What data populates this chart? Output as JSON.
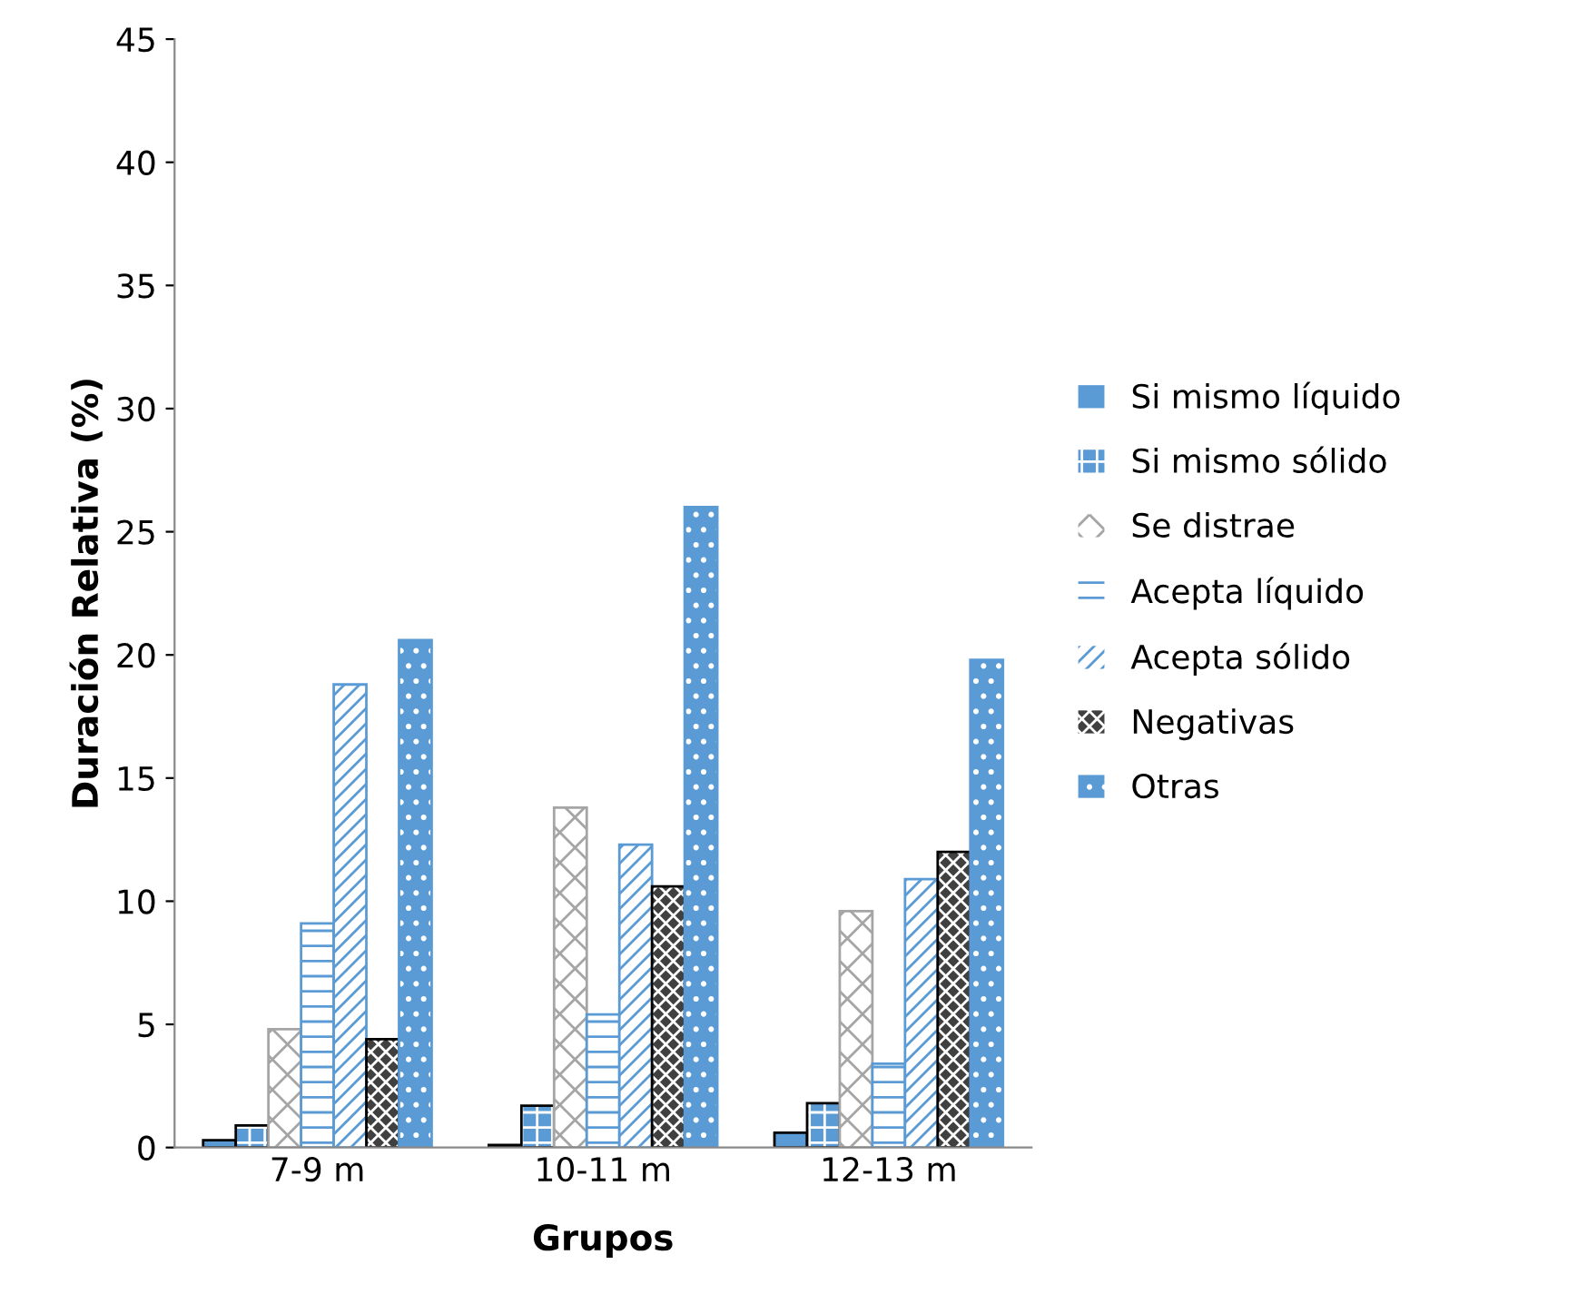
{
  "chart_data": {
    "type": "bar",
    "xlabel": "Grupos",
    "ylabel": "Duración Relativa (%)",
    "categories": [
      "7-9 m",
      "10-11 m",
      "12-13 m"
    ],
    "series": [
      {
        "name": "Si mismo líquido",
        "color": "#5b9bd5",
        "values": [
          0.3,
          0.1,
          0.6
        ]
      },
      {
        "name": "Si mismo sólido",
        "color": "#5b9bd5",
        "values": [
          0.9,
          1.7,
          1.8
        ]
      },
      {
        "name": "Se distrae",
        "color": "#a5a5a5",
        "values": [
          4.8,
          13.8,
          9.6
        ]
      },
      {
        "name": "Acepta líquido",
        "color": "#5b9bd5",
        "values": [
          9.1,
          5.4,
          3.4
        ]
      },
      {
        "name": "Acepta sólido",
        "color": "#5b9bd5",
        "values": [
          18.8,
          12.3,
          10.9
        ]
      },
      {
        "name": "Negativas",
        "color": "#404040",
        "values": [
          4.4,
          10.6,
          12.0
        ]
      },
      {
        "name": "Otras",
        "color": "#5b9bd5",
        "values": [
          20.6,
          26.0,
          19.8
        ]
      }
    ],
    "ylim": [
      0,
      45
    ],
    "yticks": [
      0,
      5,
      10,
      15,
      20,
      25,
      30,
      35,
      40,
      45
    ],
    "grid": false,
    "legend": "right"
  }
}
